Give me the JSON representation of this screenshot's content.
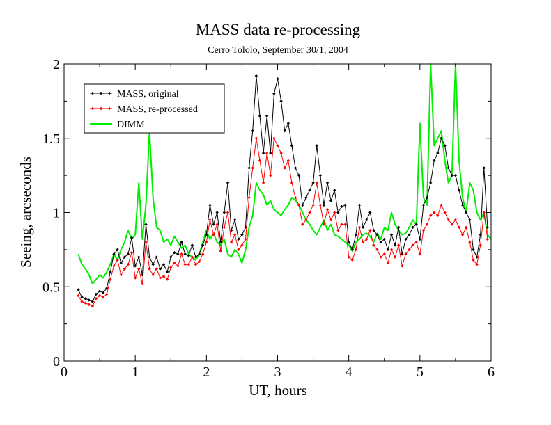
{
  "chart_data": {
    "type": "line",
    "title": "MASS data re-processing",
    "subtitle": "Cerro Tololo, September 30/1, 2004",
    "xlabel": "UT, hours",
    "ylabel": "Seeing, arcseconds",
    "xlim": [
      0,
      6
    ],
    "ylim": [
      0,
      2
    ],
    "xticks": [
      0,
      1,
      2,
      3,
      4,
      5,
      6
    ],
    "yticks": [
      0,
      0.5,
      1,
      1.5,
      2
    ],
    "xtick_labels": [
      "0",
      "1",
      "2",
      "3",
      "4",
      "5",
      "6"
    ],
    "ytick_labels": [
      "0",
      "0.5",
      "1",
      "1.5",
      "2"
    ],
    "grid": false,
    "legend_position": "top-left",
    "series": [
      {
        "name": "MASS, original",
        "color": "#000000",
        "marker": "diamond",
        "x": [
          0.2,
          0.25,
          0.3,
          0.35,
          0.4,
          0.45,
          0.5,
          0.55,
          0.6,
          0.65,
          0.7,
          0.75,
          0.8,
          0.85,
          0.9,
          0.95,
          1.0,
          1.05,
          1.1,
          1.15,
          1.2,
          1.25,
          1.3,
          1.35,
          1.4,
          1.45,
          1.5,
          1.55,
          1.6,
          1.65,
          1.7,
          1.75,
          1.8,
          1.85,
          1.9,
          1.95,
          2.0,
          2.05,
          2.1,
          2.15,
          2.2,
          2.25,
          2.3,
          2.35,
          2.4,
          2.45,
          2.5,
          2.55,
          2.6,
          2.65,
          2.7,
          2.75,
          2.8,
          2.85,
          2.9,
          2.95,
          3.0,
          3.05,
          3.1,
          3.15,
          3.2,
          3.25,
          3.3,
          3.35,
          3.4,
          3.45,
          3.5,
          3.55,
          3.6,
          3.65,
          3.7,
          3.75,
          3.8,
          3.85,
          3.9,
          3.95,
          4.0,
          4.05,
          4.1,
          4.15,
          4.2,
          4.25,
          4.3,
          4.35,
          4.4,
          4.45,
          4.5,
          4.55,
          4.6,
          4.65,
          4.7,
          4.75,
          4.8,
          4.85,
          4.9,
          4.95,
          5.0,
          5.05,
          5.1,
          5.15,
          5.2,
          5.25,
          5.3,
          5.35,
          5.4,
          5.45,
          5.5,
          5.55,
          5.6,
          5.65,
          5.7,
          5.75,
          5.8,
          5.85,
          5.9,
          5.95
        ],
        "y": [
          0.48,
          0.43,
          0.42,
          0.41,
          0.4,
          0.45,
          0.47,
          0.46,
          0.49,
          0.6,
          0.72,
          0.75,
          0.66,
          0.7,
          0.72,
          0.83,
          0.64,
          0.7,
          0.58,
          0.92,
          0.7,
          0.65,
          0.7,
          0.62,
          0.65,
          0.6,
          0.7,
          0.73,
          0.72,
          0.8,
          0.72,
          0.71,
          0.78,
          0.7,
          0.72,
          0.78,
          0.85,
          1.05,
          0.92,
          1.0,
          0.8,
          1.0,
          1.2,
          0.88,
          0.95,
          0.82,
          0.85,
          0.9,
          1.3,
          1.55,
          1.92,
          1.65,
          1.4,
          1.65,
          1.4,
          1.8,
          1.9,
          1.75,
          1.55,
          1.6,
          1.45,
          1.3,
          1.25,
          1.05,
          1.1,
          1.15,
          1.2,
          1.45,
          1.25,
          1.05,
          1.2,
          1.08,
          1.15,
          1.0,
          1.04,
          1.05,
          0.8,
          0.75,
          0.85,
          1.05,
          0.9,
          0.95,
          1.0,
          0.88,
          0.85,
          0.8,
          0.82,
          0.75,
          0.85,
          0.78,
          0.9,
          0.72,
          0.82,
          0.85,
          0.9,
          0.92,
          0.82,
          1.05,
          1.1,
          1.2,
          1.35,
          1.4,
          1.5,
          1.45,
          1.3,
          1.25,
          1.25,
          1.15,
          1.05,
          1.0,
          0.95,
          0.75,
          0.7,
          0.85,
          1.3,
          0.9
        ]
      },
      {
        "name": "MASS, re-processed",
        "color": "#ff0000",
        "marker": "diamond",
        "x": [
          0.2,
          0.25,
          0.3,
          0.35,
          0.4,
          0.45,
          0.5,
          0.55,
          0.6,
          0.65,
          0.7,
          0.75,
          0.8,
          0.85,
          0.9,
          0.95,
          1.0,
          1.05,
          1.1,
          1.15,
          1.2,
          1.25,
          1.3,
          1.35,
          1.4,
          1.45,
          1.5,
          1.55,
          1.6,
          1.65,
          1.7,
          1.75,
          1.8,
          1.85,
          1.9,
          1.95,
          2.0,
          2.05,
          2.1,
          2.15,
          2.2,
          2.25,
          2.3,
          2.35,
          2.4,
          2.45,
          2.5,
          2.55,
          2.6,
          2.65,
          2.7,
          2.75,
          2.8,
          2.85,
          2.9,
          2.95,
          3.0,
          3.05,
          3.1,
          3.15,
          3.2,
          3.25,
          3.3,
          3.35,
          3.4,
          3.45,
          3.5,
          3.55,
          3.6,
          3.65,
          3.7,
          3.75,
          3.8,
          3.85,
          3.9,
          3.95,
          4.0,
          4.05,
          4.1,
          4.15,
          4.2,
          4.25,
          4.3,
          4.35,
          4.4,
          4.45,
          4.5,
          4.55,
          4.6,
          4.65,
          4.7,
          4.75,
          4.8,
          4.85,
          4.9,
          4.95,
          5.0,
          5.05,
          5.1,
          5.15,
          5.2,
          5.25,
          5.3,
          5.35,
          5.4,
          5.45,
          5.5,
          5.55,
          5.6,
          5.65,
          5.7,
          5.75,
          5.8,
          5.85,
          5.9,
          5.95
        ],
        "y": [
          0.44,
          0.4,
          0.39,
          0.38,
          0.37,
          0.42,
          0.44,
          0.43,
          0.45,
          0.55,
          0.64,
          0.68,
          0.58,
          0.62,
          0.65,
          0.73,
          0.56,
          0.62,
          0.52,
          0.8,
          0.62,
          0.58,
          0.62,
          0.56,
          0.57,
          0.55,
          0.63,
          0.66,
          0.64,
          0.72,
          0.65,
          0.65,
          0.7,
          0.65,
          0.67,
          0.72,
          0.8,
          0.95,
          0.85,
          0.92,
          0.74,
          0.9,
          1.0,
          0.8,
          0.85,
          0.75,
          0.78,
          0.82,
          1.1,
          1.3,
          1.5,
          1.35,
          1.2,
          1.4,
          1.25,
          1.5,
          1.45,
          1.4,
          1.3,
          1.35,
          1.2,
          1.1,
          1.05,
          0.92,
          0.95,
          1.0,
          1.05,
          1.2,
          1.05,
          0.92,
          1.02,
          0.95,
          1.0,
          0.88,
          0.92,
          0.92,
          0.7,
          0.68,
          0.75,
          0.9,
          0.8,
          0.82,
          0.88,
          0.78,
          0.75,
          0.7,
          0.72,
          0.66,
          0.75,
          0.7,
          0.78,
          0.64,
          0.72,
          0.75,
          0.78,
          0.8,
          0.72,
          0.88,
          0.92,
          0.98,
          1.0,
          0.98,
          1.05,
          1.0,
          0.95,
          0.92,
          0.95,
          0.9,
          0.85,
          0.9,
          0.8,
          0.68,
          0.65,
          0.78,
          1.0,
          0.82
        ]
      },
      {
        "name": "DIMM",
        "color": "#00ee00",
        "marker": "none",
        "x": [
          0.2,
          0.25,
          0.3,
          0.35,
          0.4,
          0.45,
          0.5,
          0.55,
          0.6,
          0.65,
          0.7,
          0.75,
          0.8,
          0.85,
          0.9,
          0.95,
          1.0,
          1.05,
          1.1,
          1.15,
          1.2,
          1.25,
          1.3,
          1.35,
          1.4,
          1.45,
          1.5,
          1.55,
          1.6,
          1.65,
          1.7,
          1.75,
          1.8,
          1.85,
          1.9,
          1.95,
          2.0,
          2.05,
          2.1,
          2.15,
          2.2,
          2.25,
          2.3,
          2.35,
          2.4,
          2.45,
          2.5,
          2.55,
          2.6,
          2.65,
          2.7,
          2.75,
          2.8,
          2.85,
          2.9,
          2.95,
          3.0,
          3.05,
          3.1,
          3.15,
          3.2,
          3.25,
          3.3,
          3.35,
          3.4,
          3.45,
          3.5,
          3.55,
          3.6,
          3.65,
          3.7,
          3.75,
          3.8,
          3.85,
          3.9,
          3.95,
          4.0,
          4.05,
          4.1,
          4.15,
          4.2,
          4.25,
          4.3,
          4.35,
          4.4,
          4.45,
          4.5,
          4.55,
          4.6,
          4.65,
          4.7,
          4.75,
          4.8,
          4.85,
          4.9,
          4.95,
          5.0,
          5.05,
          5.1,
          5.15,
          5.2,
          5.25,
          5.3,
          5.35,
          5.4,
          5.45,
          5.5,
          5.55,
          5.6,
          5.65,
          5.7,
          5.75,
          5.8,
          5.85,
          5.9,
          5.95,
          6.0
        ],
        "y": [
          0.72,
          0.65,
          0.62,
          0.58,
          0.52,
          0.55,
          0.58,
          0.56,
          0.6,
          0.65,
          0.72,
          0.68,
          0.75,
          0.8,
          0.88,
          0.82,
          0.85,
          1.2,
          0.82,
          1.05,
          1.55,
          1.1,
          0.9,
          0.88,
          0.8,
          0.82,
          0.78,
          0.84,
          0.8,
          0.76,
          0.78,
          0.72,
          0.7,
          0.68,
          0.72,
          0.8,
          0.88,
          0.82,
          0.86,
          0.8,
          0.78,
          0.82,
          0.72,
          0.7,
          0.75,
          0.72,
          0.66,
          0.75,
          0.9,
          0.98,
          1.2,
          1.15,
          1.12,
          1.05,
          1.08,
          1.02,
          1.0,
          0.98,
          1.02,
          1.05,
          1.1,
          1.08,
          1.05,
          1.0,
          0.95,
          0.92,
          0.88,
          0.85,
          0.9,
          0.95,
          0.88,
          0.92,
          0.85,
          0.84,
          0.82,
          0.8,
          0.78,
          0.74,
          0.8,
          0.82,
          0.85,
          0.86,
          0.84,
          0.8,
          0.86,
          0.82,
          0.9,
          0.88,
          1.0,
          0.92,
          0.88,
          0.85,
          0.86,
          0.9,
          0.95,
          0.92,
          1.6,
          1.1,
          1.05,
          2.0,
          1.45,
          1.5,
          1.55,
          1.35,
          1.2,
          1.25,
          2.0,
          1.35,
          1.1,
          1.0,
          1.2,
          1.15,
          1.0,
          0.95,
          1.0,
          0.85,
          0.82
        ]
      }
    ]
  }
}
